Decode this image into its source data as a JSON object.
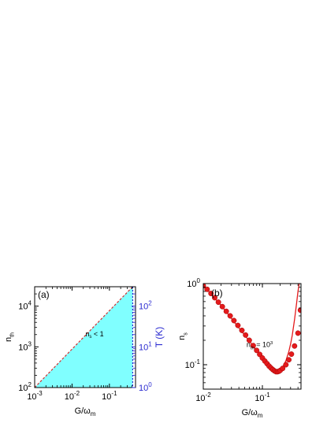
{
  "chart_data": [
    {
      "panel": "(a)",
      "type": "area",
      "xscale": "log",
      "yscale": "log",
      "xlim": [
        0.001,
        0.5
      ],
      "ylim": [
        100,
        30000
      ],
      "xlabel": "G/ω_m",
      "ylabel": "n_th",
      "y2label": "T (K)",
      "y2scale": "log",
      "y2lim": [
        1,
        300
      ],
      "xticks": [
        {
          "value": 0.001,
          "base": "10",
          "exp": "-3"
        },
        {
          "value": 0.01,
          "base": "10",
          "exp": "-2"
        },
        {
          "value": 0.1,
          "base": "10",
          "exp": "-1"
        }
      ],
      "yticks": [
        {
          "value": 100,
          "base": "10",
          "exp": "2"
        },
        {
          "value": 1000,
          "base": "10",
          "exp": "3"
        },
        {
          "value": 10000,
          "base": "10",
          "exp": "4"
        }
      ],
      "y2ticks": [
        {
          "value": 1,
          "base": "10",
          "exp": "0"
        },
        {
          "value": 10,
          "base": "10",
          "exp": "1"
        },
        {
          "value": 100,
          "base": "10",
          "exp": "2"
        }
      ],
      "boundary": {
        "x": [
          0.001,
          0.42
        ],
        "y": [
          100,
          30000
        ]
      },
      "vertical_marker_x": 0.42,
      "annotation": {
        "text_main": "n",
        "text_sub": "s",
        "text_rest": " < 1",
        "x": 0.04,
        "y": 1800
      },
      "colors": {
        "fill": "#80ffff",
        "boundary": "#cc3333",
        "marker": "#2a2ad0",
        "y2axis": "#2a2ad0"
      }
    },
    {
      "panel": "(b)",
      "type": "line",
      "xscale": "log",
      "yscale": "log",
      "xlim": [
        0.01,
        0.45
      ],
      "ylim": [
        0.05,
        1.0
      ],
      "xlabel": "G/ω_m",
      "ylabel": "n_s",
      "xticks": [
        {
          "value": 0.01,
          "base": "10",
          "exp": "-2"
        },
        {
          "value": 0.1,
          "base": "10",
          "exp": "-1"
        }
      ],
      "yticks": [
        {
          "value": 0.1,
          "base": "10",
          "exp": "-1"
        },
        {
          "value": 1,
          "base": "10",
          "exp": "0"
        }
      ],
      "annotation": {
        "text_main": "n",
        "text_sub": "th",
        "text_rest": " = 10",
        "text_sup": "3",
        "x": 0.09,
        "y": 0.165
      },
      "series": [
        {
          "style": "line",
          "x": [
            0.01,
            0.012,
            0.015,
            0.02,
            0.03,
            0.04,
            0.05,
            0.06,
            0.07,
            0.08,
            0.09,
            0.1,
            0.11,
            0.12,
            0.13,
            0.14,
            0.15,
            0.16,
            0.17,
            0.18,
            0.19,
            0.2,
            0.22,
            0.25,
            0.28,
            0.3,
            0.32,
            0.35,
            0.38,
            0.4,
            0.42,
            0.44
          ],
          "y": [
            0.95,
            0.82,
            0.68,
            0.54,
            0.37,
            0.285,
            0.232,
            0.196,
            0.17,
            0.15,
            0.134,
            0.122,
            0.112,
            0.104,
            0.097,
            0.092,
            0.088,
            0.085,
            0.083,
            0.083,
            0.084,
            0.086,
            0.093,
            0.112,
            0.145,
            0.18,
            0.23,
            0.36,
            0.58,
            0.8,
            1.0,
            1.2
          ]
        },
        {
          "style": "markers",
          "x": [
            0.01,
            0.0116,
            0.0135,
            0.0156,
            0.018,
            0.021,
            0.0245,
            0.0285,
            0.033,
            0.0385,
            0.045,
            0.052,
            0.06,
            0.07,
            0.08,
            0.09,
            0.1,
            0.11,
            0.12,
            0.13,
            0.14,
            0.15,
            0.16,
            0.17,
            0.18,
            0.19,
            0.2,
            0.22,
            0.25,
            0.28,
            0.31,
            0.35,
            0.4,
            0.44
          ],
          "y": [
            0.94,
            0.85,
            0.755,
            0.67,
            0.59,
            0.52,
            0.455,
            0.4,
            0.35,
            0.305,
            0.265,
            0.232,
            0.2,
            0.172,
            0.15,
            0.134,
            0.121,
            0.111,
            0.103,
            0.096,
            0.091,
            0.087,
            0.084,
            0.082,
            0.082,
            0.083,
            0.085,
            0.09,
            0.1,
            0.115,
            0.135,
            0.17,
            0.245,
            0.47
          ]
        }
      ],
      "colors": {
        "series": "#e41a1c"
      }
    }
  ]
}
